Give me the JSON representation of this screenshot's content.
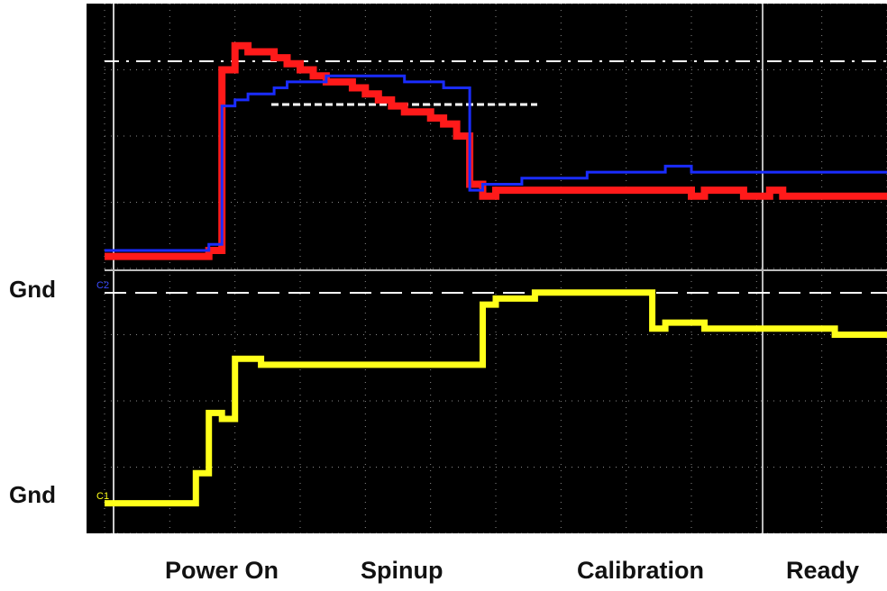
{
  "labels": {
    "ground_ch2": "Gnd",
    "ground_ch1": "Gnd",
    "channel_2_marker": "C2",
    "channel_1_marker": "C1"
  },
  "phases": [
    "Power On",
    "Spinup",
    "Calibration",
    "Ready"
  ],
  "colors": {
    "background": "#000000",
    "grid": "#8a8a8a",
    "trace_red": "#ff1a1a",
    "trace_blue": "#1a2cff",
    "trace_yellow": "#ffff1a",
    "reference": "#ffffff"
  },
  "chart_data": {
    "type": "line",
    "x": [
      0,
      0.2,
      0.4,
      0.6,
      0.8,
      1.0,
      1.2,
      1.4,
      1.6,
      1.8,
      2.0,
      2.2,
      2.4,
      2.6,
      2.8,
      3.0,
      3.2,
      3.4,
      3.6,
      3.8,
      4.0,
      4.2,
      4.4,
      4.6,
      4.8,
      5.0,
      5.2,
      5.4,
      5.6,
      5.8,
      6.0,
      6.2,
      6.4,
      6.6,
      6.8,
      7.0,
      7.2,
      7.4,
      7.6,
      7.8,
      8.0,
      8.2,
      8.4,
      8.6,
      8.8,
      9.0,
      9.2,
      9.4,
      9.6,
      9.8,
      10.0,
      10.2,
      10.4,
      10.6,
      10.8,
      11.0,
      11.2,
      11.4,
      11.6,
      11.8,
      12.0
    ],
    "series": [
      {
        "color": "#ff1a1a",
        "values": [
          -0.1,
          -0.1,
          -0.1,
          -0.1,
          -0.1,
          -0.1,
          -0.1,
          -0.1,
          0.0,
          3.0,
          3.4,
          3.3,
          3.3,
          3.2,
          3.1,
          3.0,
          2.9,
          2.8,
          2.8,
          2.7,
          2.6,
          2.5,
          2.4,
          2.3,
          2.3,
          2.2,
          2.1,
          1.9,
          1.1,
          0.9,
          1.0,
          1.0,
          1.0,
          1.0,
          1.0,
          1.0,
          1.0,
          1.0,
          1.0,
          1.0,
          1.0,
          1.0,
          1.0,
          1.0,
          1.0,
          0.9,
          1.0,
          1.0,
          1.0,
          0.9,
          0.9,
          1.0,
          0.9,
          0.9,
          0.9,
          0.9,
          0.9,
          0.9,
          0.9,
          0.9,
          0.9
        ]
      },
      {
        "color": "#1a2cff",
        "values": [
          0.0,
          0.0,
          0.0,
          0.0,
          0.0,
          0.0,
          0.0,
          0.0,
          0.1,
          2.4,
          2.5,
          2.6,
          2.6,
          2.7,
          2.8,
          2.8,
          2.8,
          2.9,
          2.9,
          2.9,
          2.9,
          2.9,
          2.9,
          2.8,
          2.8,
          2.8,
          2.7,
          2.7,
          1.0,
          1.1,
          1.1,
          1.1,
          1.2,
          1.2,
          1.2,
          1.2,
          1.2,
          1.3,
          1.3,
          1.3,
          1.3,
          1.3,
          1.3,
          1.4,
          1.4,
          1.3,
          1.3,
          1.3,
          1.3,
          1.3,
          1.3,
          1.3,
          1.3,
          1.3,
          1.3,
          1.3,
          1.3,
          1.3,
          1.3,
          1.3,
          1.3
        ]
      },
      {
        "color": "#ffff1a",
        "values": [
          -4.2,
          -4.2,
          -4.2,
          -4.2,
          -4.2,
          -4.2,
          -4.2,
          -3.7,
          -2.7,
          -2.8,
          -1.8,
          -1.8,
          -1.9,
          -1.9,
          -1.9,
          -1.9,
          -1.9,
          -1.9,
          -1.9,
          -1.9,
          -1.9,
          -1.9,
          -1.9,
          -1.9,
          -1.9,
          -1.9,
          -1.9,
          -1.9,
          -1.9,
          -0.9,
          -0.8,
          -0.8,
          -0.8,
          -0.7,
          -0.7,
          -0.7,
          -0.7,
          -0.7,
          -0.7,
          -0.7,
          -0.7,
          -0.7,
          -1.3,
          -1.2,
          -1.2,
          -1.2,
          -1.3,
          -1.3,
          -1.3,
          -1.3,
          -1.3,
          -1.3,
          -1.3,
          -1.3,
          -1.3,
          -1.3,
          -1.4,
          -1.4,
          -1.4,
          -1.4,
          -1.4
        ]
      }
    ],
    "ylim": [
      -4.7,
      4.1
    ],
    "xlim": [
      0,
      12
    ],
    "grid": true
  }
}
